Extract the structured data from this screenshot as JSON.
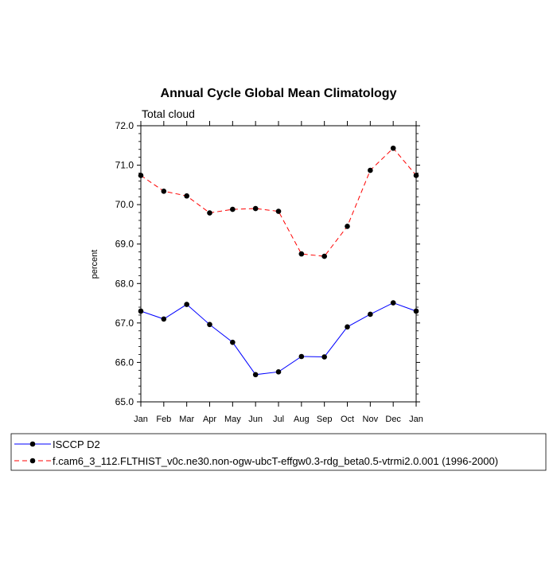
{
  "chart_data": {
    "type": "line",
    "title": "Annual Cycle Global Mean Climatology",
    "subtitle": "Total cloud",
    "xlabel": "",
    "ylabel": "percent",
    "categories": [
      "Jan",
      "Feb",
      "Mar",
      "Apr",
      "May",
      "Jun",
      "Jul",
      "Aug",
      "Sep",
      "Oct",
      "Nov",
      "Dec",
      "Jan"
    ],
    "ylim": [
      65.0,
      72.0
    ],
    "yticks": [
      "65.0",
      "66.0",
      "67.0",
      "68.0",
      "69.0",
      "70.0",
      "71.0",
      "72.0"
    ],
    "grid": false,
    "legend_position": "bottom",
    "series": [
      {
        "name": "ISCCP D2",
        "color": "#0000ff",
        "dash": "solid",
        "values": [
          67.3,
          67.1,
          67.47,
          66.96,
          66.51,
          65.69,
          65.76,
          66.15,
          66.14,
          66.9,
          67.22,
          67.51,
          67.3
        ]
      },
      {
        "name": "f.cam6_3_112.FLTHIST_v0c.ne30.non-ogw-ubcT-effgw0.3-rdg_beta0.5-vtrmi2.0.001 (1996-2000)",
        "color": "#ff0000",
        "dash": "dashed",
        "values": [
          70.74,
          70.34,
          70.22,
          69.79,
          69.88,
          69.9,
          69.83,
          68.75,
          68.69,
          69.45,
          70.87,
          71.43,
          70.74
        ]
      }
    ]
  }
}
